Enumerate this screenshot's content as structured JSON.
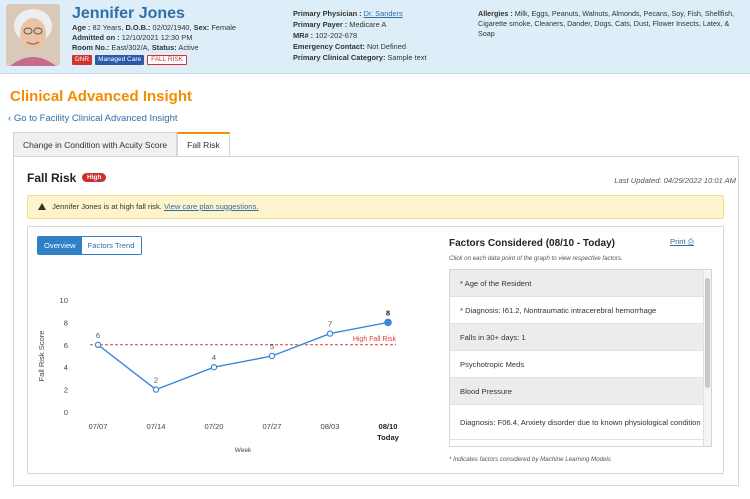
{
  "patient": {
    "name": "Jennifer Jones",
    "age_label": "Age :",
    "age": "82 Years,",
    "dob_label": "D.O.B.:",
    "dob": "02/02/1940,",
    "sex_label": "Sex:",
    "sex": "Female",
    "admitted_label": "Admitted on :",
    "admitted": "12/10/2021 12:30 PM",
    "room_label": "Room No.:",
    "room": "East/302/A,",
    "status_label": "Status:",
    "status": "Active",
    "badges": [
      "DNR",
      "Managed Care",
      "FALL RISK"
    ],
    "physician_label": "Primary Physician :",
    "physician": "Dr. Sanders",
    "payer_label": "Primary Payer :",
    "payer": "Medicare A",
    "mr_label": "MR# :",
    "mr": "102-202-678",
    "emergency_label": "Emergency Contact:",
    "emergency": "Not Defined",
    "category_label": "Primary Clinical Category:",
    "category": "Sample text",
    "allergies_label": "Allergies :",
    "allergies": "Milk, Eggs, Peanuts, Walnuts, Almonds, Pecans, Soy, Fish, Shellfish, Cigarette smoke, Cleaners, Dander, Dogs, Cats, Dust, Flower Insects, Latex, & Soap"
  },
  "page": {
    "title": "Clinical Advanced Insight",
    "back_link": "Go to Facility Clinical Advanced Insight",
    "tabs": [
      "Change in Condition with Acuity Score",
      "Fall Risk"
    ],
    "active_tab": "Fall Risk"
  },
  "fall_risk": {
    "title": "Fall Risk",
    "badge": "High",
    "last_updated": "Last Updated: 04/29/2022 10:01 AM",
    "alert_text": "Jennifer Jones is at high fall risk.",
    "alert_link": "View care plan suggestions.",
    "toggle": [
      "Overview",
      "Factors Trend"
    ],
    "active_toggle": "Overview"
  },
  "chart_data": {
    "type": "line",
    "x": [
      "07/07",
      "07/14",
      "07/20",
      "07/27",
      "08/03",
      "08/10"
    ],
    "x_sublabel_last": "Today",
    "values": [
      6,
      2,
      4,
      5,
      7,
      8
    ],
    "ylim": [
      0,
      10
    ],
    "yticks": [
      0,
      2,
      4,
      6,
      8,
      10
    ],
    "xlabel": "Week",
    "ylabel": "Fall Risk Score",
    "threshold": {
      "value": 6,
      "label": "High Fall Risk",
      "color": "#e03c3c"
    },
    "line_color": "#3d86d6",
    "grid": false
  },
  "factors": {
    "title": "Factors Considered (08/10 - Today)",
    "print": "Print",
    "subtitle": "Click on each data point of the graph to view respective factors.",
    "items": [
      "* Age of the Resident",
      "* Diagnosis: I61.2, Nontraumatic intracerebral hemorrhage",
      "Falls in 30+ days: 1",
      "Psychotropic Meds",
      "Blood Pressure",
      "Diagnosis: F06.4, Anxiety disorder due to known physiological condition"
    ],
    "footnote": "* Indicates factors considered by Machine Learning Models"
  },
  "colors": {
    "accent": "#f28c00",
    "link": "#2f6fa7",
    "danger": "#d0342c"
  }
}
